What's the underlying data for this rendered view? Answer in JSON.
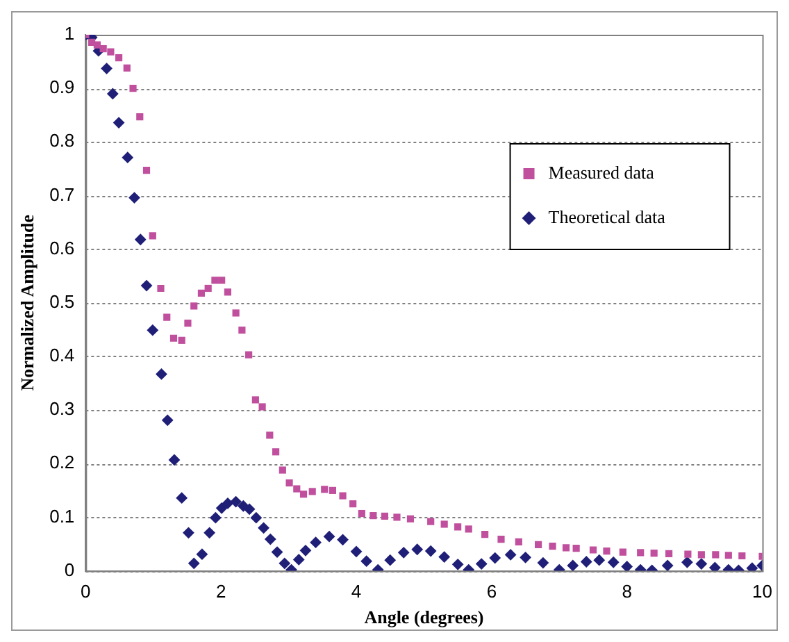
{
  "chart_data": {
    "type": "scatter",
    "xlabel": "Angle (degrees)",
    "ylabel": "Normalized Amplitude",
    "xlim": [
      0,
      10
    ],
    "xticks": [
      0,
      2,
      4,
      6,
      8,
      10
    ],
    "ylim": [
      0,
      1
    ],
    "yticks": [
      0,
      0.1,
      0.2,
      0.3,
      0.4,
      0.5,
      0.6,
      0.7,
      0.8,
      0.9,
      1
    ],
    "grid": "y",
    "legend": "top right",
    "series": [
      {
        "name": "Measured data",
        "color": "#c0509e",
        "marker": "square",
        "x": [
          0,
          0.09,
          0.17,
          0.26,
          0.37,
          0.49,
          0.61,
          0.7,
          0.8,
          0.9,
          0.99,
          1.11,
          1.2,
          1.3,
          1.42,
          1.51,
          1.6,
          1.71,
          1.81,
          1.91,
          2.01,
          2.1,
          2.22,
          2.31,
          2.41,
          2.51,
          2.61,
          2.72,
          2.81,
          2.91,
          3.01,
          3.12,
          3.22,
          3.35,
          3.53,
          3.65,
          3.8,
          3.95,
          4.08,
          4.25,
          4.42,
          4.6,
          4.8,
          5.1,
          5.3,
          5.5,
          5.66,
          5.9,
          6.14,
          6.4,
          6.69,
          6.9,
          7.1,
          7.25,
          7.5,
          7.7,
          7.94,
          8.2,
          8.4,
          8.62,
          8.9,
          9.1,
          9.31,
          9.5,
          9.7,
          10
        ],
        "values": [
          1,
          0.986,
          0.981,
          0.974,
          0.968,
          0.957,
          0.938,
          0.9,
          0.847,
          0.747,
          0.625,
          0.527,
          0.473,
          0.434,
          0.43,
          0.462,
          0.494,
          0.518,
          0.527,
          0.542,
          0.542,
          0.52,
          0.481,
          0.449,
          0.403,
          0.319,
          0.306,
          0.253,
          0.222,
          0.188,
          0.164,
          0.153,
          0.143,
          0.148,
          0.152,
          0.15,
          0.14,
          0.125,
          0.107,
          0.103,
          0.102,
          0.1,
          0.097,
          0.092,
          0.087,
          0.082,
          0.078,
          0.068,
          0.059,
          0.054,
          0.049,
          0.046,
          0.043,
          0.042,
          0.039,
          0.037,
          0.035,
          0.034,
          0.033,
          0.032,
          0.031,
          0.03,
          0.03,
          0.029,
          0.028,
          0.027
        ]
      },
      {
        "name": "Theoretical data",
        "color": "#1f1f78",
        "marker": "diamond",
        "x": [
          0,
          0.09,
          0.19,
          0.31,
          0.4,
          0.49,
          0.62,
          0.72,
          0.81,
          0.9,
          0.99,
          1.12,
          1.21,
          1.31,
          1.42,
          1.52,
          1.6,
          1.72,
          1.83,
          1.92,
          2.01,
          2.1,
          2.22,
          2.33,
          2.42,
          2.52,
          2.63,
          2.73,
          2.83,
          2.94,
          3.04,
          3.15,
          3.25,
          3.4,
          3.6,
          3.8,
          4.0,
          4.15,
          4.32,
          4.5,
          4.7,
          4.9,
          5.1,
          5.3,
          5.5,
          5.66,
          5.85,
          6.05,
          6.28,
          6.5,
          6.76,
          7.0,
          7.2,
          7.4,
          7.59,
          7.8,
          8.0,
          8.2,
          8.37,
          8.6,
          8.89,
          9.1,
          9.3,
          9.5,
          9.65,
          9.85,
          10
        ],
        "values": [
          1,
          0.995,
          0.97,
          0.937,
          0.89,
          0.836,
          0.771,
          0.696,
          0.618,
          0.532,
          0.449,
          0.367,
          0.281,
          0.207,
          0.136,
          0.071,
          0.014,
          0.031,
          0.071,
          0.099,
          0.117,
          0.126,
          0.129,
          0.121,
          0.115,
          0.099,
          0.08,
          0.059,
          0.035,
          0.014,
          0.002,
          0.021,
          0.038,
          0.053,
          0.064,
          0.058,
          0.036,
          0.018,
          0.002,
          0.02,
          0.034,
          0.04,
          0.037,
          0.026,
          0.012,
          0.002,
          0.013,
          0.024,
          0.03,
          0.025,
          0.015,
          0.002,
          0.01,
          0.017,
          0.02,
          0.016,
          0.008,
          0.002,
          0.001,
          0.01,
          0.016,
          0.013,
          0.006,
          0.002,
          0.001,
          0.005,
          0.01
        ]
      }
    ]
  }
}
